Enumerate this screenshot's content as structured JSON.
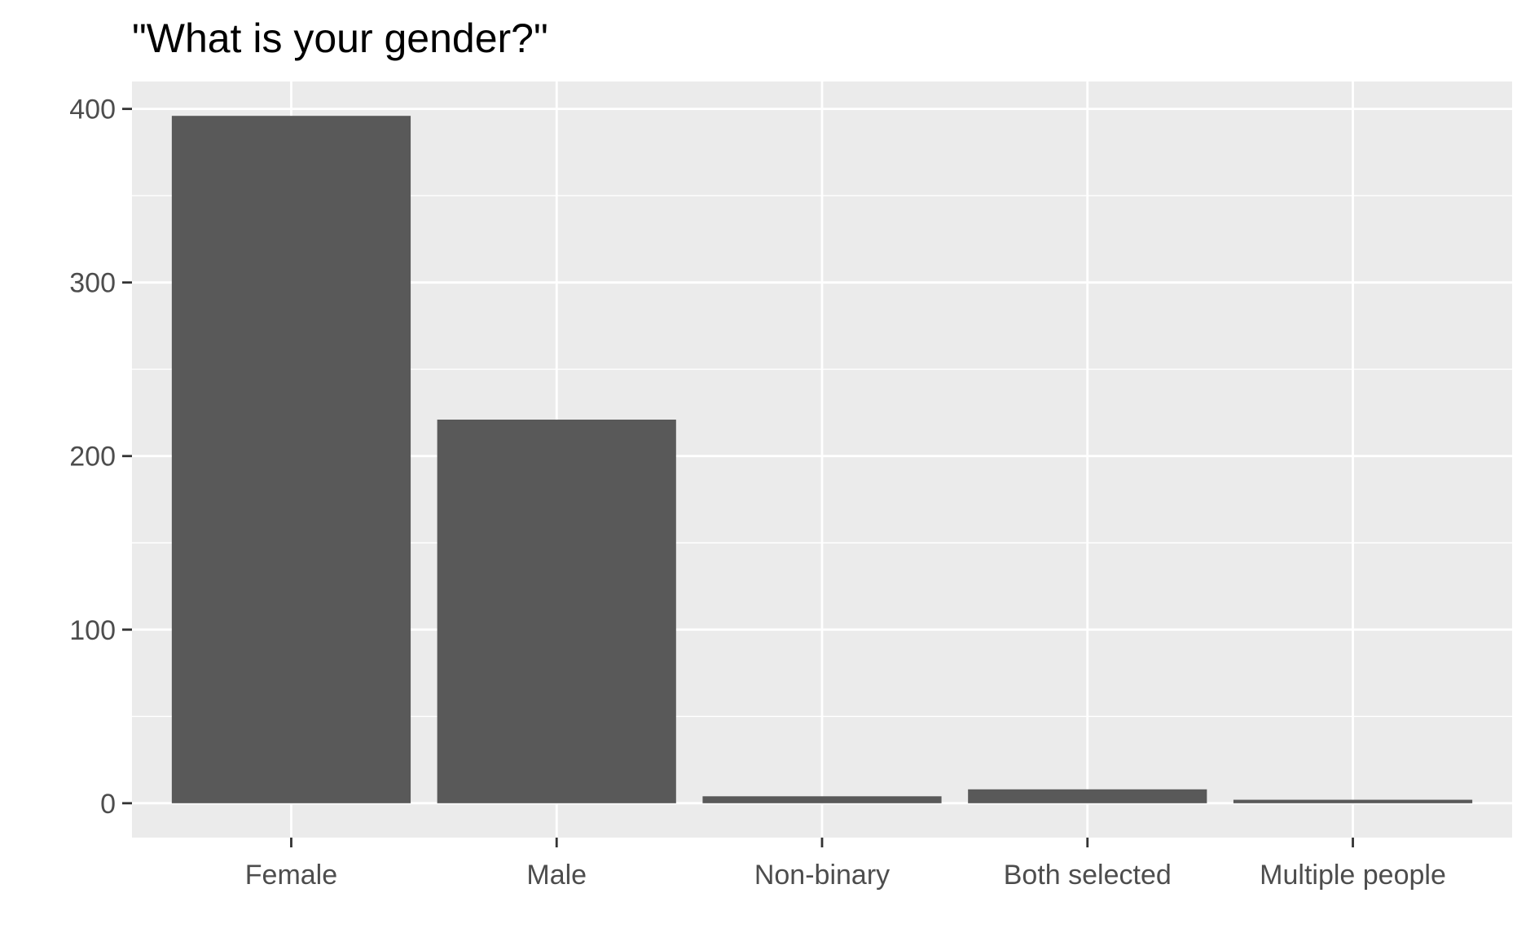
{
  "chart_data": {
    "type": "bar",
    "title": "\"What is your gender?\"",
    "xlabel": "",
    "ylabel": "",
    "categories": [
      "Female",
      "Male",
      "Non-binary",
      "Both selected",
      "Multiple people"
    ],
    "values": [
      396,
      221,
      4,
      8,
      2
    ],
    "ylim": [
      -19.8,
      415.8
    ],
    "yticks": [
      0,
      100,
      200,
      300,
      400
    ],
    "ytick_labels": [
      "0",
      "100",
      "200",
      "300",
      "400"
    ],
    "grid": true,
    "legend": "none",
    "colors": {
      "bar": "#595959",
      "panel": "#ebebeb",
      "grid": "#ffffff",
      "tick_text": "#4d4d4d",
      "tick_mark": "#333333",
      "title": "#000000"
    }
  }
}
